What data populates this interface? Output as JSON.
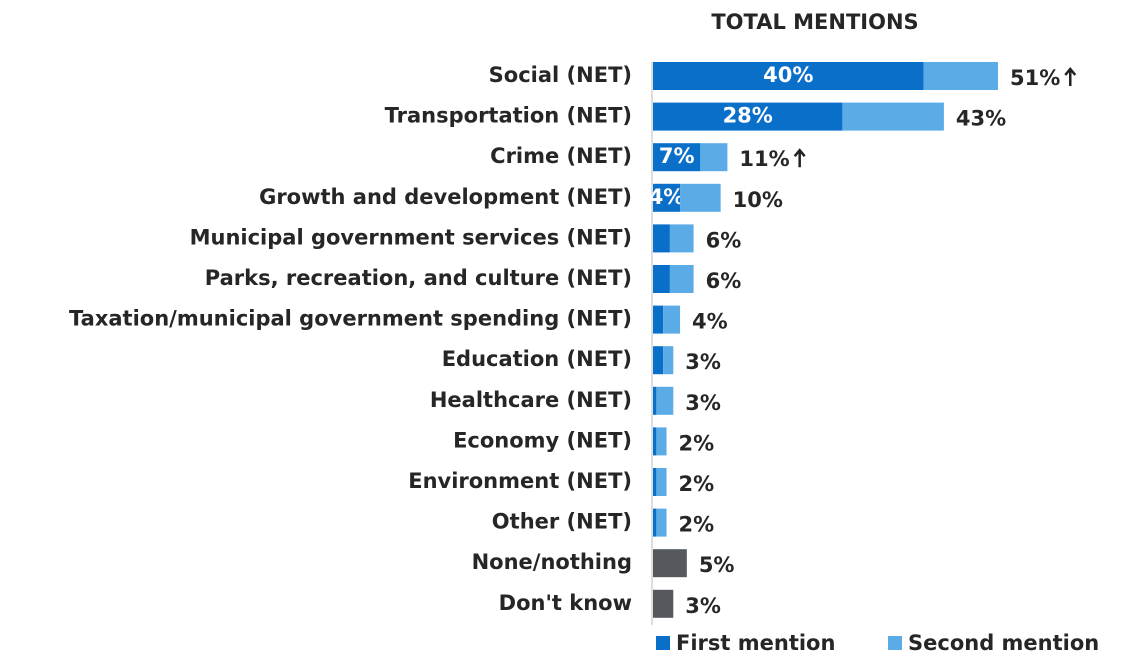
{
  "chart_data": {
    "type": "stacked-bar",
    "orientation": "horizontal",
    "title": "TOTAL MENTIONS",
    "categories": [
      "Social (NET)",
      "Transportation (NET)",
      "Crime (NET)",
      "Growth and development (NET)",
      "Municipal government services (NET)",
      "Parks, recreation, and culture (NET)",
      "Taxation/municipal government spending (NET)",
      "Education (NET)",
      "Healthcare (NET)",
      "Economy (NET)",
      "Environment (NET)",
      "Other (NET)",
      "None/nothing",
      "Don't know"
    ],
    "series": [
      {
        "name": "First mention",
        "color": "#0a6fc9",
        "values": [
          40,
          28,
          7,
          4,
          2.5,
          2.5,
          1.5,
          1.5,
          0.5,
          0.5,
          0.5,
          0.5,
          null,
          null
        ],
        "value_labels": [
          "40%",
          "28%",
          "7%",
          "4%",
          null,
          null,
          null,
          null,
          null,
          null,
          null,
          null,
          null,
          null
        ]
      },
      {
        "name": "Second mention",
        "color": "#5aabe6",
        "values": [
          11,
          15,
          4,
          6,
          3.5,
          3.5,
          2.5,
          1.5,
          2.5,
          1.5,
          1.5,
          1.5,
          null,
          null
        ]
      }
    ],
    "totals": {
      "color": "#55595e",
      "values": [
        51,
        43,
        11,
        10,
        6,
        6,
        4,
        3,
        3,
        2,
        2,
        2,
        5,
        3
      ],
      "value_labels": [
        "51%",
        "43%",
        "11%",
        "10%",
        "6%",
        "6%",
        "4%",
        "3%",
        "3%",
        "2%",
        "2%",
        "2%",
        "5%",
        "3%"
      ]
    },
    "significant_increase": [
      true,
      false,
      true,
      false,
      false,
      false,
      false,
      false,
      false,
      false,
      false,
      false,
      false,
      false
    ],
    "xlim": [
      0,
      51
    ]
  }
}
